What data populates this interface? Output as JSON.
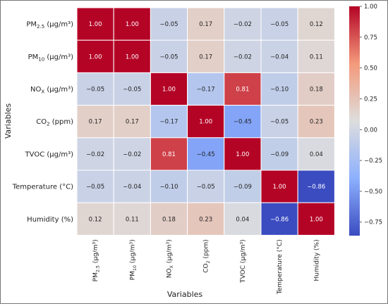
{
  "chart_data": {
    "type": "heatmap",
    "xlabel": "Variables",
    "ylabel": "Variables",
    "rows": [
      {
        "main": "PM",
        "sub": "2.5",
        "rest": " (μg/m³)"
      },
      {
        "main": "PM",
        "sub": "10",
        "rest": " (μg/m³)"
      },
      {
        "main": "NO",
        "sub": "X",
        "rest": " (μg/m³)"
      },
      {
        "main": "CO",
        "sub": "2",
        "rest": " (ppm)"
      },
      {
        "main": "TVOC (μg/m³)",
        "sub": "",
        "rest": ""
      },
      {
        "main": "Temperature (°C)",
        "sub": "",
        "rest": ""
      },
      {
        "main": "Humidity (%)",
        "sub": "",
        "rest": ""
      }
    ],
    "columns": [
      {
        "main": "PM",
        "sub": "2.5",
        "rest": " (μg/m³)"
      },
      {
        "main": "PM",
        "sub": "10",
        "rest": " (μg/m³)"
      },
      {
        "main": "NO",
        "sub": "X",
        "rest": " (μg/m³)"
      },
      {
        "main": "CO",
        "sub": "2",
        "rest": " (ppm)"
      },
      {
        "main": "TVOC (μg/m³)",
        "sub": "",
        "rest": ""
      },
      {
        "main": "Temperature (°C)",
        "sub": "",
        "rest": ""
      },
      {
        "main": "Humidity (%)",
        "sub": "",
        "rest": ""
      }
    ],
    "values": [
      [
        1.0,
        1.0,
        -0.05,
        0.17,
        -0.02,
        -0.05,
        0.12
      ],
      [
        1.0,
        1.0,
        -0.05,
        0.17,
        -0.02,
        -0.04,
        0.11
      ],
      [
        -0.05,
        -0.05,
        1.0,
        -0.17,
        0.81,
        -0.1,
        0.18
      ],
      [
        0.17,
        0.17,
        -0.17,
        1.0,
        -0.45,
        -0.05,
        0.23
      ],
      [
        -0.02,
        -0.02,
        0.81,
        -0.45,
        1.0,
        -0.09,
        0.04
      ],
      [
        -0.05,
        -0.04,
        -0.1,
        -0.05,
        -0.09,
        1.0,
        -0.86
      ],
      [
        0.12,
        0.11,
        0.18,
        0.23,
        0.04,
        -0.86,
        1.0
      ]
    ],
    "colorbar": {
      "range": [
        -0.86,
        1.0
      ],
      "ticks": [
        1.0,
        0.75,
        0.5,
        0.25,
        0.0,
        -0.25,
        -0.5,
        -0.75
      ],
      "tick_labels": [
        "1.00",
        "0.75",
        "0.50",
        "0.25",
        "0.00",
        "−0.25",
        "−0.50",
        "−0.75"
      ],
      "colormap": "coolwarm"
    },
    "grid": true
  }
}
